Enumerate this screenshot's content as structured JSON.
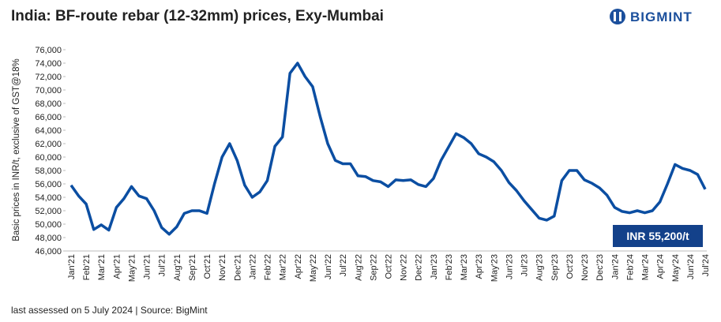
{
  "logo": "BIGMINT",
  "footer": "last assessed on 5 July 2024 | Source: BigMint",
  "chart_data": {
    "type": "line",
    "title": "India: BF-route rebar (12-32mm) prices, Exy-Mumbai",
    "y_label": "Basic prices in INR/t,  exclusive of GST@18%",
    "annotation": "INR 55,200/t",
    "categories": [
      "Jan'21",
      null,
      "Feb'21",
      null,
      "Mar'21",
      null,
      "Apr'21",
      null,
      "May'21",
      null,
      "Jun'21",
      null,
      "Jul'21",
      null,
      "Aug'21",
      null,
      "Sep'21",
      null,
      "Oct'21",
      null,
      "Nov'21",
      null,
      "Dec'21",
      null,
      "Jan'22",
      null,
      "Feb'22",
      null,
      "Mar'22",
      null,
      "Apr'22",
      null,
      "May'22",
      null,
      "Jun'22",
      null,
      "Jul'22",
      null,
      "Aug'22",
      null,
      "Sep'22",
      null,
      "Oct'22",
      null,
      "Nov'22",
      null,
      "Dec'22",
      null,
      "Jan'23",
      null,
      "Feb'23",
      null,
      "Mar'23",
      null,
      "Apr'23",
      null,
      "May'23",
      null,
      "Jun'23",
      null,
      "Jul'23",
      null,
      "Aug'23",
      null,
      "Sep'23",
      null,
      "Oct'23",
      null,
      "Nov'23",
      null,
      "Dec'23",
      null,
      "Jan'24",
      null,
      "Feb'24",
      null,
      "Mar'24",
      null,
      "Apr'24",
      null,
      "May'24",
      null,
      "Jun'24",
      null,
      "Jul'24"
    ],
    "series": [
      {
        "name": "Rebar price",
        "color": "#0b4ea2",
        "values": [
          55800,
          54200,
          53000,
          49200,
          49900,
          49100,
          52500,
          53800,
          55600,
          54200,
          53800,
          52000,
          49500,
          48500,
          49600,
          51600,
          52000,
          52000,
          51600,
          56000,
          60000,
          62000,
          59500,
          55800,
          54000,
          54800,
          56500,
          61600,
          63000,
          72500,
          74000,
          72000,
          70500,
          66000,
          62000,
          59500,
          59000,
          59000,
          57200,
          57100,
          56500,
          56300,
          55600,
          56600,
          56500,
          56600,
          55900,
          55600,
          56800,
          59500,
          61500,
          63500,
          62900,
          62000,
          60500,
          60000,
          59300,
          58000,
          56200,
          55000,
          53500,
          52200,
          50900,
          50600,
          51200,
          56500,
          58000,
          58000,
          56600,
          56100,
          55400,
          54300,
          52500,
          51900,
          51700,
          52000,
          51700,
          52000,
          53300,
          56000,
          58900,
          58300,
          58000,
          57400,
          55200
        ]
      }
    ],
    "ylim": [
      46000,
      76000
    ],
    "yticks": [
      {
        "value": 46000,
        "label": "46,000"
      },
      {
        "value": 48000,
        "label": "48,000"
      },
      {
        "value": 50000,
        "label": "50,000"
      },
      {
        "value": 52000,
        "label": "52,000"
      },
      {
        "value": 54000,
        "label": "54,000"
      },
      {
        "value": 56000,
        "label": "56,000"
      },
      {
        "value": 58000,
        "label": "58,000"
      },
      {
        "value": 60000,
        "label": "60,000"
      },
      {
        "value": 62000,
        "label": "62,000"
      },
      {
        "value": 64000,
        "label": "64,000"
      },
      {
        "value": 66000,
        "label": "66,000"
      },
      {
        "value": 68000,
        "label": "68,000"
      },
      {
        "value": 70000,
        "label": "70,000"
      },
      {
        "value": 72000,
        "label": "72,000"
      },
      {
        "value": 74000,
        "label": "74,000"
      },
      {
        "value": 76000,
        "label": "76,000"
      }
    ],
    "grid": false
  }
}
